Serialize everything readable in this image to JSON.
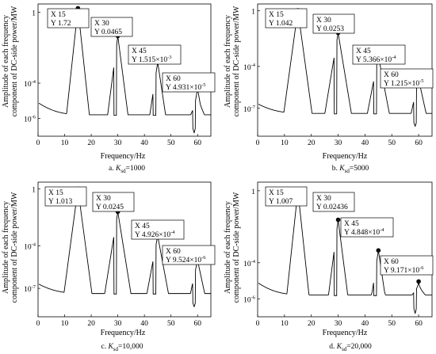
{
  "chart_data": [
    {
      "type": "line",
      "caption": "a. K_sd=1000",
      "caption_prefix": "a.",
      "caption_symbol": "K",
      "caption_subscript": "sd",
      "caption_value": "=1000",
      "xlabel": "Frequency/Hz",
      "ylabel_line1": "Amplitude of each frequency",
      "ylabel_line2": "component of DC-side power/MW",
      "xlim": [
        0,
        65
      ],
      "ylim": [
        1e-07,
        3
      ],
      "yscale": "log",
      "xticks": [
        "0",
        "10",
        "20",
        "30",
        "40",
        "50",
        "60"
      ],
      "yticks": [
        {
          "v": 1,
          "label": "1"
        },
        {
          "v": 0.0001,
          "label": "10",
          "exp": "-4"
        },
        {
          "v": 1e-06,
          "label": "10",
          "exp": "-6"
        }
      ],
      "peaks": [
        {
          "x": 15,
          "y": 1.72,
          "xl": "X 15",
          "yl": "Y 1.72"
        },
        {
          "x": 30,
          "y": 0.0465,
          "xl": "X 30",
          "yl": "Y 0.0465"
        },
        {
          "x": 45,
          "y": 0.001515,
          "xl": "X 45",
          "yl": "Y 1.515×10",
          "exp": "-3"
        },
        {
          "x": 60,
          "y": 4.931e-05,
          "xl": "X 60",
          "yl": "Y 4.931×10",
          "exp": "-5"
        }
      ],
      "floor": [
        3e-07,
        1.5e-06,
        4e-06
      ]
    },
    {
      "type": "line",
      "caption": "b. K_sd=5000",
      "caption_prefix": "b.",
      "caption_symbol": "K",
      "caption_subscript": "sd",
      "caption_value": "=5000",
      "xlabel": "Frequency/Hz",
      "ylabel_line1": "Amplitude of each frequency",
      "ylabel_line2": "component of DC-side power/MW",
      "xlim": [
        0,
        65
      ],
      "ylim": [
        1e-09,
        3
      ],
      "yscale": "log",
      "xticks": [
        "0",
        "10",
        "20",
        "30",
        "40",
        "50",
        "60"
      ],
      "yticks": [
        {
          "v": 1,
          "label": "1"
        },
        {
          "v": 0.0001,
          "label": "10",
          "exp": "-4"
        },
        {
          "v": 1e-07,
          "label": "10",
          "exp": "-7"
        }
      ],
      "peaks": [
        {
          "x": 15,
          "y": 1.042,
          "xl": "X 15",
          "yl": "Y 1.042"
        },
        {
          "x": 30,
          "y": 0.0253,
          "xl": "X 30",
          "yl": "Y 0.0253"
        },
        {
          "x": 45,
          "y": 0.0005366,
          "xl": "X 45",
          "yl": "Y 5.366×10",
          "exp": "-4"
        },
        {
          "x": 60,
          "y": 1.215e-05,
          "xl": "X 60",
          "yl": "Y 1.215×10",
          "exp": "-5"
        }
      ],
      "floor": [
        1e-08,
        4e-08,
        1.2e-07
      ]
    },
    {
      "type": "line",
      "caption": "c. K_sd=10,000",
      "caption_prefix": "c.",
      "caption_symbol": "K",
      "caption_subscript": "sd",
      "caption_value": "=10,000",
      "xlabel": "Frequency/Hz",
      "ylabel_line1": "Amplitude of each frequency",
      "ylabel_line2": "component of DC-side power/MW",
      "xlim": [
        0,
        65
      ],
      "ylim": [
        1e-09,
        3
      ],
      "yscale": "log",
      "xticks": [
        "0",
        "10",
        "20",
        "30",
        "40",
        "50",
        "60"
      ],
      "yticks": [
        {
          "v": 1,
          "label": "1"
        },
        {
          "v": 0.0001,
          "label": "10",
          "exp": "-4"
        },
        {
          "v": 1e-07,
          "label": "10",
          "exp": "-7"
        }
      ],
      "peaks": [
        {
          "x": 15,
          "y": 1.013,
          "xl": "X 15",
          "yl": "Y 1.013"
        },
        {
          "x": 30,
          "y": 0.0245,
          "xl": "X 30",
          "yl": "Y  0.0245"
        },
        {
          "x": 45,
          "y": 0.0004926,
          "xl": "X 45",
          "yl": "Y 4.926×10",
          "exp": "-4"
        },
        {
          "x": 60,
          "y": 9.524e-06,
          "xl": "X 60",
          "yl": "Y 9.524×10",
          "exp": "-6"
        }
      ],
      "floor": [
        1e-08,
        4e-08,
        1.2e-07
      ]
    },
    {
      "type": "line",
      "caption": "d. K_sd=20,000",
      "caption_prefix": "d.",
      "caption_symbol": "K",
      "caption_subscript": "sd",
      "caption_value": "=20,000",
      "xlabel": "Frequency/Hz",
      "ylabel_line1": "Amplitude of each frequency",
      "ylabel_line2": "component of DC-side power/MW",
      "xlim": [
        0,
        65
      ],
      "ylim": [
        1e-07,
        3
      ],
      "yscale": "log",
      "xticks": [
        "0",
        "10",
        "20",
        "30",
        "40",
        "50",
        "60"
      ],
      "yticks": [
        {
          "v": 1,
          "label": "1"
        },
        {
          "v": 0.0001,
          "label": "10",
          "exp": "-4"
        },
        {
          "v": 1e-06,
          "label": "10",
          "exp": "-6"
        }
      ],
      "peaks": [
        {
          "x": 15,
          "y": 1.007,
          "xl": "X 15",
          "yl": "Y 1.007"
        },
        {
          "x": 30,
          "y": 0.02436,
          "xl": "X 30",
          "yl": "Y 0.02436"
        },
        {
          "x": 45,
          "y": 0.0004848,
          "xl": "X 45",
          "yl": "Y 4.848×10",
          "exp": "-4"
        },
        {
          "x": 60,
          "y": 9.171e-06,
          "xl": "X 60",
          "yl": "Y 9.171×10",
          "exp": "-6"
        }
      ],
      "floor": [
        3e-07,
        1.5e-06,
        4e-06
      ]
    }
  ]
}
